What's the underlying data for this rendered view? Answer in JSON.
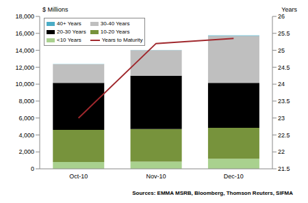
{
  "chart_data": {
    "type": "bar",
    "stacked": true,
    "grid": false,
    "legend": "upper left",
    "y_label": "$ Millions",
    "y2_label": "Years",
    "source": "Sources: EMMA MSRB, Bloomberg, Thomson Reuters, SIFMA",
    "categories": [
      "Oct-10",
      "Nov-10",
      "Dec-10"
    ],
    "ylim": [
      0,
      18000
    ],
    "yticks": [
      0,
      {
        "value": 2000,
        "label": "2,000"
      },
      {
        "value": 4000,
        "label": "4,000"
      },
      {
        "value": 6000,
        "label": "6,000"
      },
      {
        "value": 8000,
        "label": "8,000"
      },
      {
        "value": 10000,
        "label": "10,000"
      },
      {
        "value": 12000,
        "label": "12,000"
      },
      {
        "value": 14000,
        "label": "14,000"
      },
      {
        "value": 16000,
        "label": "16,000"
      },
      {
        "value": 18000,
        "label": "18,000"
      }
    ],
    "y2lim": [
      21.5,
      26
    ],
    "y2ticks": [
      21.5,
      22,
      22.5,
      23,
      23.5,
      24,
      24.5,
      25,
      25.5,
      26
    ],
    "series": [
      {
        "name": "<10 Years",
        "type": "bar",
        "color": "#a9d18e",
        "values": [
          800,
          850,
          1200
        ]
      },
      {
        "name": "10-20 Years",
        "type": "bar",
        "color": "#77933c",
        "values": [
          3800,
          3850,
          3650
        ]
      },
      {
        "name": "20-30 Years",
        "type": "bar",
        "color": "#000000",
        "values": [
          5550,
          6300,
          5300
        ]
      },
      {
        "name": "30-40 Years",
        "type": "bar",
        "color": "#bfbfbf",
        "values": [
          2200,
          3000,
          5550
        ]
      },
      {
        "name": "40+ Years",
        "type": "bar",
        "color": "#4bacc6",
        "values": [
          20,
          30,
          60
        ]
      },
      {
        "name": "Years to Maturity",
        "type": "line",
        "axis": "y2",
        "color": "#a0282d",
        "values": [
          23.0,
          25.2,
          25.35
        ]
      }
    ]
  }
}
